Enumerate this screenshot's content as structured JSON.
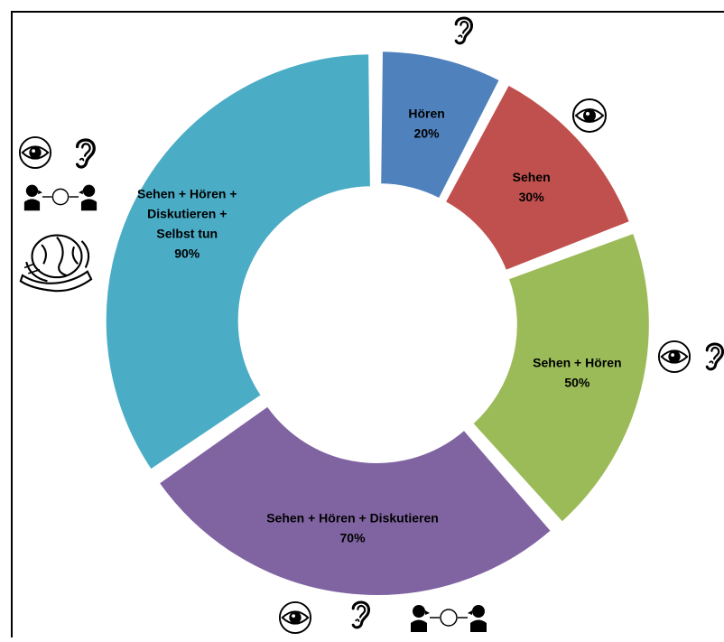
{
  "chart_data": {
    "type": "pie",
    "style": "donut",
    "categories": [
      "Hören",
      "Sehen",
      "Sehen + Hören",
      "Sehen + Hören + Diskutieren",
      "Sehen + Hören + Diskutieren + Selbst tun"
    ],
    "values": [
      20,
      30,
      50,
      70,
      90
    ],
    "value_labels": [
      "20%",
      "30%",
      "50%",
      "70%",
      "90%"
    ],
    "label_lines": [
      [
        "Hören",
        "20%"
      ],
      [
        "Sehen",
        "30%"
      ],
      [
        "Sehen + Hören",
        "50%"
      ],
      [
        "Sehen + Hören + Diskutieren",
        "70%"
      ],
      [
        "Sehen + Hören +",
        "Diskutieren +",
        "Selbst tun",
        "90%"
      ]
    ],
    "colors": [
      "#4f81bd",
      "#c0504d",
      "#9bbb59",
      "#8064a2",
      "#4bacc6"
    ],
    "label_color": "#000000",
    "icons": [
      [
        "ear-icon"
      ],
      [
        "eye-icon"
      ],
      [
        "eye-icon",
        "ear-icon"
      ],
      [
        "eye-icon",
        "ear-icon",
        "discussion-icon"
      ],
      [
        "eye-icon",
        "ear-icon",
        "discussion-icon",
        "hands-globe-icon"
      ]
    ]
  }
}
